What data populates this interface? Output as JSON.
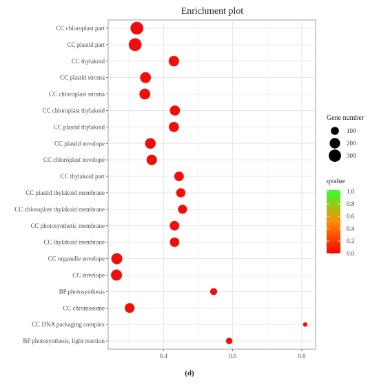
{
  "panel_label": "(d)",
  "chart_data": {
    "type": "scatter",
    "title": "Enrichment plot",
    "xlabel": "",
    "ylabel": "",
    "xlim": [
      0.24,
      0.84
    ],
    "xticks": [
      "0.4",
      "0.6",
      "0.8"
    ],
    "xtick_values": [
      0.4,
      0.6,
      0.8
    ],
    "grid": true,
    "terms": [
      "CC chloroplast part",
      "CC plastid part",
      "CC thylakoid",
      "CC plastid stroma",
      "CC chloroplast stroma",
      "CC chloroplast thylakoid",
      "CC plastid thylakoid",
      "CC plastid envelope",
      "CC chloroplast envelope",
      "CC thylakoid part",
      "CC plastid thylakoid membrane",
      "CC chloroplast thylakoid membrane",
      "CC photosynthetic membrane",
      "CC thylakoid membrane",
      "CC organelle envelope",
      "CC envelope",
      "BP photosynthesis",
      "CC chromosome",
      "CC DNA packaging complex",
      "BP photosynthesis, light reaction"
    ],
    "rich_factor": [
      0.323,
      0.318,
      0.43,
      0.348,
      0.346,
      0.433,
      0.43,
      0.362,
      0.366,
      0.445,
      0.45,
      0.455,
      0.432,
      0.432,
      0.265,
      0.264,
      0.545,
      0.302,
      0.81,
      0.59
    ],
    "gene_number": [
      330,
      330,
      200,
      220,
      220,
      185,
      185,
      210,
      200,
      160,
      145,
      140,
      160,
      160,
      230,
      230,
      70,
      170,
      15,
      55
    ],
    "qvalue": [
      0.0,
      0.0,
      0.0,
      0.0,
      0.0,
      0.0,
      0.0,
      0.0,
      0.0,
      0.0,
      0.0,
      0.0,
      0.0,
      0.0,
      0.0,
      0.0,
      0.0,
      0.0,
      0.02,
      0.0
    ],
    "legend_size": {
      "title": "Gene number",
      "values": [
        100,
        200,
        300
      ],
      "labels": [
        "100",
        "200",
        "300"
      ]
    },
    "legend_color": {
      "title": "qvalue",
      "labels": [
        "1.0",
        "0.8",
        "0.6",
        "0.4",
        "0.2",
        "0.0"
      ],
      "low_color": "#ff0000",
      "mid_color": "#ff8c00",
      "high_color": "#33ff33",
      "point_color": "#f20d0d"
    }
  }
}
